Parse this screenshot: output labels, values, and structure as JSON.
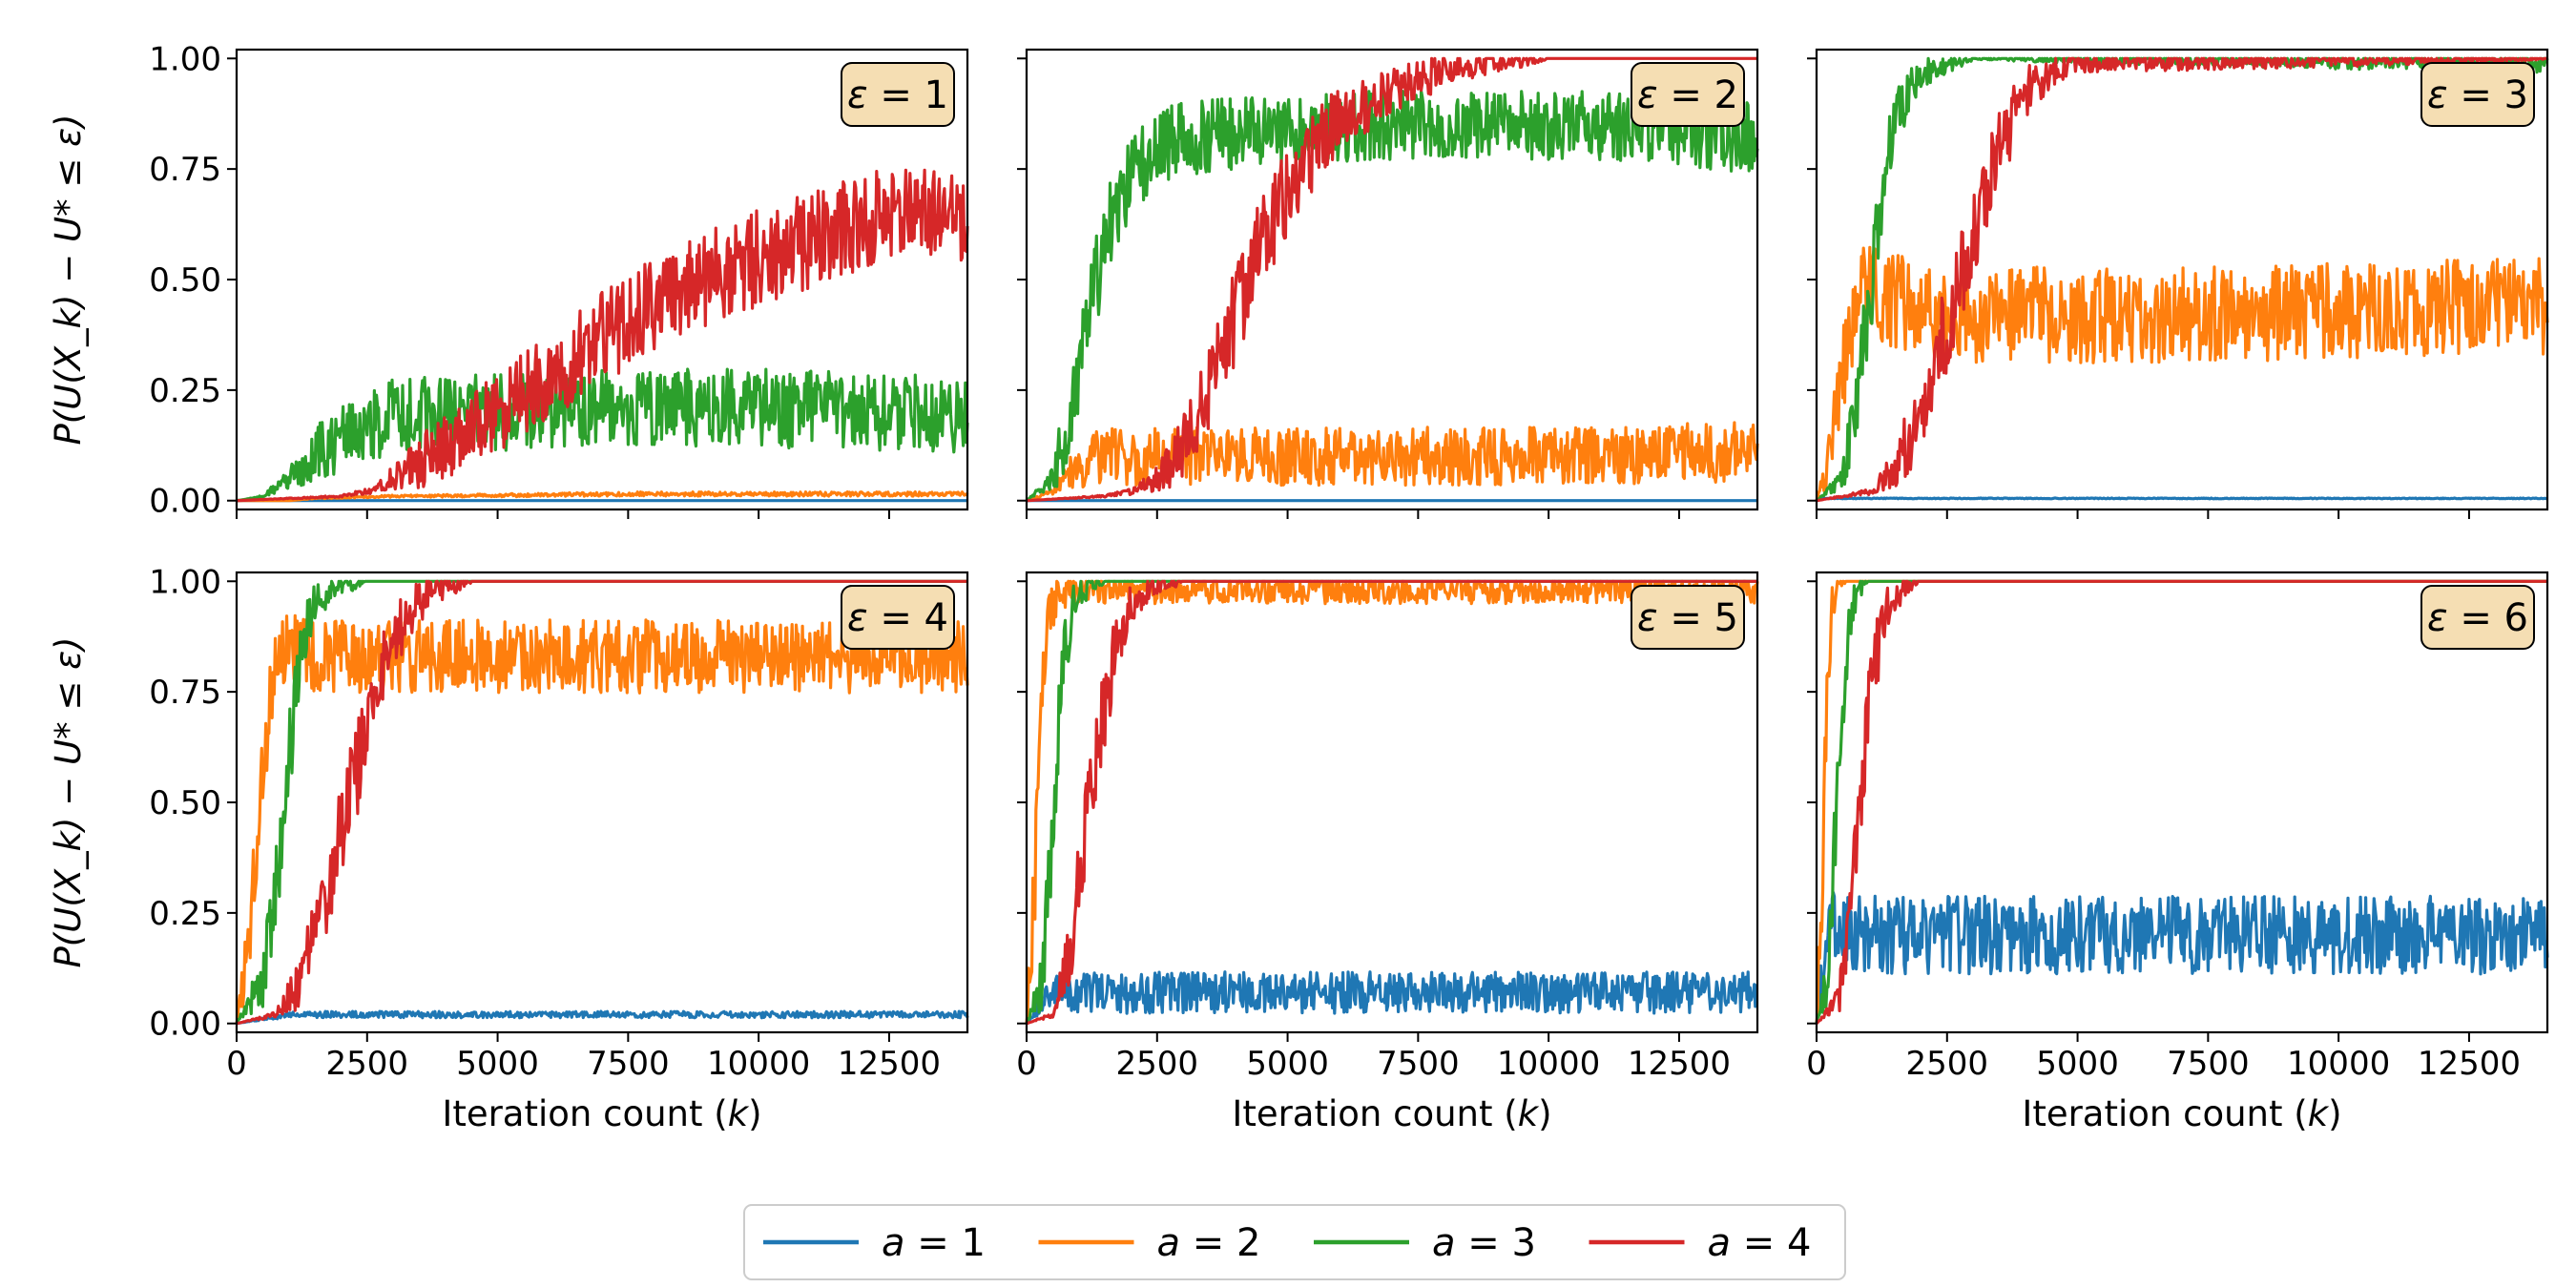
{
  "chart_data": {
    "type": "line",
    "layout": {
      "rows": 2,
      "cols": 3
    },
    "shared_xlabel": "Iteration count (k)",
    "shared_ylabel": "P(U(X_k) − U* ≤ ε)",
    "xlim": [
      0,
      14000
    ],
    "ylim": [
      -0.02,
      1.02
    ],
    "x_ticks": [
      0,
      2500,
      5000,
      7500,
      10000,
      12500
    ],
    "x_tick_labels": [
      "0",
      "2500",
      "5000",
      "7500",
      "10000",
      "12500"
    ],
    "y_ticks": [
      0,
      0.25,
      0.5,
      0.75,
      1.0
    ],
    "y_tick_labels": [
      "0.00",
      "0.25",
      "0.50",
      "0.75",
      "1.00"
    ],
    "legend": {
      "placement": "bottom-center",
      "entries": [
        {
          "label": "a = 1",
          "color": "#1f77b4"
        },
        {
          "label": "a = 2",
          "color": "#ff7f0e"
        },
        {
          "label": "a = 3",
          "color": "#2ca02c"
        },
        {
          "label": "a = 4",
          "color": "#d62728"
        }
      ]
    },
    "annotation_style": {
      "box_fill": "#f5deb3",
      "box_stroke": "#000000"
    },
    "subplots": [
      {
        "annotation": "ε = 1",
        "series": [
          {
            "name": "a = 1",
            "color": "#1f77b4",
            "x": [
              0,
              14000
            ],
            "y": [
              0,
              0
            ]
          },
          {
            "name": "a = 2",
            "color": "#ff7f0e",
            "x": [
              0,
              1000,
              1500,
              3000,
              5000,
              7500,
              10000,
              12500,
              14000
            ],
            "y": [
              0,
              0,
              0.005,
              0.01,
              0.012,
              0.015,
              0.015,
              0.015,
              0.015
            ]
          },
          {
            "name": "a = 3",
            "color": "#2ca02c",
            "x": [
              0,
              500,
              1000,
              1500,
              2000,
              2500,
              3000,
              5000,
              7500,
              10000,
              12500,
              14000
            ],
            "y": [
              0,
              0.01,
              0.05,
              0.1,
              0.14,
              0.17,
              0.19,
              0.2,
              0.21,
              0.21,
              0.2,
              0.19
            ]
          },
          {
            "name": "a = 4",
            "color": "#d62728",
            "x": [
              0,
              2000,
              2500,
              3000,
              4000,
              5000,
              6000,
              7000,
              8000,
              9000,
              10000,
              11000,
              12000,
              12500,
              13000,
              14000
            ],
            "y": [
              0,
              0.01,
              0.02,
              0.05,
              0.12,
              0.2,
              0.28,
              0.37,
              0.44,
              0.5,
              0.55,
              0.59,
              0.63,
              0.65,
              0.66,
              0.64
            ]
          }
        ]
      },
      {
        "annotation": "ε = 2",
        "series": [
          {
            "name": "a = 1",
            "color": "#1f77b4",
            "x": [
              0,
              14000
            ],
            "y": [
              0,
              0
            ]
          },
          {
            "name": "a = 2",
            "color": "#ff7f0e",
            "x": [
              0,
              500,
              750,
              1000,
              1500,
              2000,
              5000,
              10000,
              14000
            ],
            "y": [
              0,
              0.02,
              0.05,
              0.08,
              0.1,
              0.1,
              0.1,
              0.1,
              0.11
            ]
          },
          {
            "name": "a = 3",
            "color": "#2ca02c",
            "x": [
              0,
              500,
              750,
              1000,
              1250,
              1500,
              1750,
              2000,
              2500,
              3000,
              4000,
              5000,
              7500,
              10000,
              12500,
              14000
            ],
            "y": [
              0,
              0.05,
              0.15,
              0.3,
              0.45,
              0.58,
              0.68,
              0.74,
              0.8,
              0.82,
              0.83,
              0.84,
              0.85,
              0.85,
              0.84,
              0.82
            ]
          },
          {
            "name": "a = 4",
            "color": "#d62728",
            "x": [
              0,
              1500,
              2000,
              2500,
              3000,
              3500,
              4000,
              4500,
              5000,
              5500,
              6000,
              7000,
              8000,
              9000,
              10000,
              14000
            ],
            "y": [
              0,
              0.01,
              0.02,
              0.05,
              0.12,
              0.25,
              0.42,
              0.58,
              0.7,
              0.79,
              0.86,
              0.93,
              0.97,
              0.99,
              1.0,
              1.0
            ]
          }
        ]
      },
      {
        "annotation": "ε = 3",
        "series": [
          {
            "name": "a = 1",
            "color": "#1f77b4",
            "x": [
              0,
              14000
            ],
            "y": [
              0.005,
              0.005
            ]
          },
          {
            "name": "a = 2",
            "color": "#ff7f0e",
            "x": [
              0,
              250,
              500,
              750,
              1000,
              1500,
              2500,
              5000,
              7500,
              10000,
              12500,
              14000
            ],
            "y": [
              0,
              0.1,
              0.3,
              0.45,
              0.47,
              0.45,
              0.42,
              0.42,
              0.42,
              0.43,
              0.44,
              0.44
            ]
          },
          {
            "name": "a = 3",
            "color": "#2ca02c",
            "x": [
              0,
              500,
              750,
              1000,
              1250,
              1500,
              1750,
              2000,
              2500,
              3000,
              14000
            ],
            "y": [
              0,
              0.05,
              0.2,
              0.45,
              0.7,
              0.85,
              0.93,
              0.97,
              0.99,
              1.0,
              0.99
            ]
          },
          {
            "name": "a = 4",
            "color": "#d62728",
            "x": [
              0,
              1000,
              1500,
              2000,
              2500,
              3000,
              3500,
              4000,
              4500,
              5000,
              14000
            ],
            "y": [
              0,
              0.02,
              0.07,
              0.2,
              0.4,
              0.6,
              0.8,
              0.92,
              0.97,
              0.99,
              1.0
            ]
          }
        ]
      },
      {
        "annotation": "ε = 4",
        "series": [
          {
            "name": "a = 1",
            "color": "#1f77b4",
            "x": [
              0,
              500,
              1000,
              14000
            ],
            "y": [
              0,
              0.01,
              0.02,
              0.02
            ]
          },
          {
            "name": "a = 2",
            "color": "#ff7f0e",
            "x": [
              0,
              250,
              500,
              750,
              1000,
              1500,
              14000
            ],
            "y": [
              0,
              0.2,
              0.6,
              0.8,
              0.85,
              0.83,
              0.83
            ]
          },
          {
            "name": "a = 3",
            "color": "#2ca02c",
            "x": [
              0,
              500,
              750,
              1000,
              1250,
              1500,
              2000,
              2500,
              14000
            ],
            "y": [
              0,
              0.1,
              0.3,
              0.6,
              0.85,
              0.95,
              0.99,
              1.0,
              1.0
            ]
          },
          {
            "name": "a = 4",
            "color": "#d62728",
            "x": [
              0,
              750,
              1250,
              1750,
              2250,
              2750,
              3250,
              3750,
              4500,
              14000
            ],
            "y": [
              0,
              0.02,
              0.1,
              0.3,
              0.55,
              0.78,
              0.92,
              0.98,
              1.0,
              1.0
            ]
          }
        ]
      },
      {
        "annotation": "ε = 5",
        "series": [
          {
            "name": "a = 1",
            "color": "#1f77b4",
            "x": [
              0,
              250,
              500,
              1000,
              14000
            ],
            "y": [
              0,
              0.04,
              0.07,
              0.07,
              0.07
            ]
          },
          {
            "name": "a = 2",
            "color": "#ff7f0e",
            "x": [
              0,
              150,
              300,
              450,
              600,
              1000,
              14000
            ],
            "y": [
              0,
              0.3,
              0.75,
              0.93,
              0.97,
              0.98,
              0.98
            ]
          },
          {
            "name": "a = 3",
            "color": "#2ca02c",
            "x": [
              0,
              300,
              500,
              700,
              900,
              1200,
              1500,
              14000
            ],
            "y": [
              0,
              0.1,
              0.45,
              0.8,
              0.95,
              0.99,
              1.0,
              1.0
            ]
          },
          {
            "name": "a = 4",
            "color": "#d62728",
            "x": [
              0,
              500,
              800,
              1100,
              1400,
              1700,
              2000,
              2400,
              3000,
              14000
            ],
            "y": [
              0,
              0.02,
              0.15,
              0.4,
              0.65,
              0.85,
              0.95,
              0.99,
              1.0,
              1.0
            ]
          }
        ]
      },
      {
        "annotation": "ε = 6",
        "series": [
          {
            "name": "a = 1",
            "color": "#1f77b4",
            "x": [
              0,
              100,
              200,
              300,
              500,
              14000
            ],
            "y": [
              0,
              0.1,
              0.2,
              0.22,
              0.2,
              0.2
            ]
          },
          {
            "name": "a = 2",
            "color": "#ff7f0e",
            "x": [
              0,
              100,
              200,
              300,
              400,
              600,
              14000
            ],
            "y": [
              0,
              0.3,
              0.7,
              0.95,
              0.99,
              1.0,
              1.0
            ]
          },
          {
            "name": "a = 3",
            "color": "#2ca02c",
            "x": [
              0,
              200,
              350,
              500,
              650,
              800,
              1000,
              14000
            ],
            "y": [
              0,
              0.1,
              0.4,
              0.75,
              0.92,
              0.98,
              1.0,
              1.0
            ]
          },
          {
            "name": "a = 4",
            "color": "#d62728",
            "x": [
              0,
              400,
              600,
              800,
              1000,
              1200,
              1400,
              1700,
              2000,
              14000
            ],
            "y": [
              0,
              0.05,
              0.2,
              0.45,
              0.7,
              0.87,
              0.95,
              0.99,
              1.0,
              1.0
            ]
          }
        ]
      }
    ]
  }
}
